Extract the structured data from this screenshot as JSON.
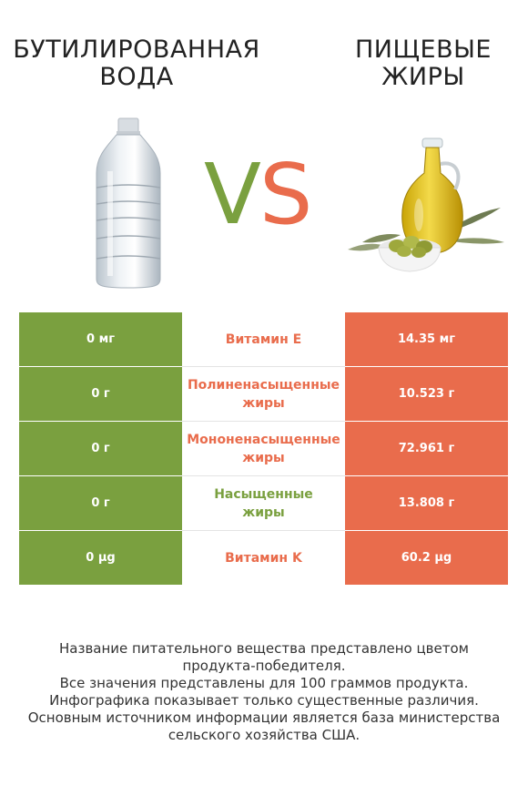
{
  "left_product": {
    "title_lines": [
      "БУТИЛИРОВАННАЯ",
      "ВОДА"
    ],
    "color": "#7aa03f",
    "image": "water-bottle-image"
  },
  "right_product": {
    "title_lines": [
      "ПИЩЕВЫЕ",
      "ЖИРЫ"
    ],
    "color": "#e96c4c",
    "image": "olive-oil-image"
  },
  "vs": {
    "v": "V",
    "s": "S",
    "v_color": "#7aa03f",
    "s_color": "#e96c4c"
  },
  "rows": [
    {
      "left": "0 мг",
      "nutrient": "Витамин E",
      "nutrient_color": "#e96c4c",
      "right": "14.35 мг"
    },
    {
      "left": "0 г",
      "nutrient": "Полиненасыщенные\nжиры",
      "nutrient_color": "#e96c4c",
      "right": "10.523 г"
    },
    {
      "left": "0 г",
      "nutrient": "Мононенасыщенные\nжиры",
      "nutrient_color": "#e96c4c",
      "right": "72.961 г"
    },
    {
      "left": "0 г",
      "nutrient": "Насыщенные\nжиры",
      "nutrient_color": "#7aa03f",
      "right": "13.808 г"
    },
    {
      "left": "0 µg",
      "nutrient": "Витамин K",
      "nutrient_color": "#e96c4c",
      "right": "60.2 µg"
    }
  ],
  "footnote_lines": [
    "Название питательного вещества представлено цветом",
    "продукта-победителя.",
    "Все значения представлены для 100 граммов продукта.",
    "Инфографика показывает только существенные различия.",
    "Основным источником информации является база министерства",
    "сельского хозяйства США."
  ]
}
